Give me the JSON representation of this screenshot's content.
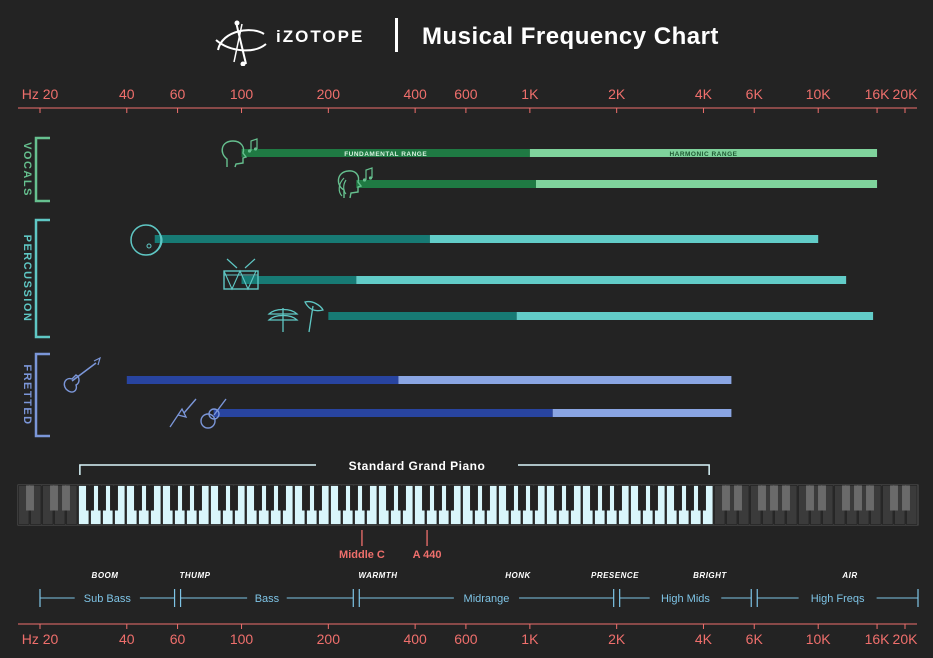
{
  "header": {
    "brand": "iZOTOPE",
    "title": "Musical Frequency Chart"
  },
  "colors": {
    "background": "#232323",
    "axis_text": "#ef6f6c",
    "vocals": "#66c08f",
    "vocals_fund": "#1f7a43",
    "vocals_harm": "#7fd39c",
    "percussion": "#5fc7c4",
    "percussion_fund": "#177a74",
    "percussion_harm": "#62ccc8",
    "fretted": "#7b96d8",
    "fretted_fund": "#2844a0",
    "fretted_harm": "#8aa5e3",
    "piano": "#d9f6fb",
    "band_labels": "#7ec4e6"
  },
  "chart_data": {
    "type": "bar",
    "subtype": "frequency-range",
    "title": "Musical Frequency Chart",
    "x_scale": "log",
    "x_unit": "Hz",
    "xlim": [
      20,
      20000
    ],
    "x_ticks": [
      {
        "value": 20,
        "label": "Hz 20"
      },
      {
        "value": 40,
        "label": "40"
      },
      {
        "value": 60,
        "label": "60"
      },
      {
        "value": 100,
        "label": "100"
      },
      {
        "value": 200,
        "label": "200"
      },
      {
        "value": 400,
        "label": "400"
      },
      {
        "value": 600,
        "label": "600"
      },
      {
        "value": 1000,
        "label": "1K"
      },
      {
        "value": 2000,
        "label": "2K"
      },
      {
        "value": 4000,
        "label": "4K"
      },
      {
        "value": 6000,
        "label": "6K"
      },
      {
        "value": 10000,
        "label": "10K"
      },
      {
        "value": 16000,
        "label": "16K"
      },
      {
        "value": 20000,
        "label": "20K"
      }
    ],
    "range_labels": {
      "fundamental": "FUNDAMENTAL RANGE",
      "harmonic": "HARMONIC RANGE"
    },
    "groups": [
      {
        "name": "VOCALS",
        "rows": [
          {
            "instrument": "male-voice-icon",
            "fundamental": [
              100,
              1000
            ],
            "harmonic": [
              1000,
              16000
            ]
          },
          {
            "instrument": "female-voice-icon",
            "fundamental": [
              250,
              1050
            ],
            "harmonic": [
              1050,
              16000
            ]
          }
        ]
      },
      {
        "name": "PERCUSSION",
        "rows": [
          {
            "instrument": "kick-drum-icon",
            "fundamental": [
              50,
              450
            ],
            "harmonic": [
              450,
              10000
            ]
          },
          {
            "instrument": "snare-drum-icon",
            "fundamental": [
              100,
              250
            ],
            "harmonic": [
              250,
              12500
            ]
          },
          {
            "instrument": "cymbals-icon",
            "fundamental": [
              200,
              900
            ],
            "harmonic": [
              900,
              15500
            ]
          }
        ]
      },
      {
        "name": "FRETTED",
        "rows": [
          {
            "instrument": "bass-guitar-icon",
            "fundamental": [
              40,
              350
            ],
            "harmonic": [
              350,
              5000
            ]
          },
          {
            "instrument": "guitar-icon",
            "fundamental": [
              80,
              1200
            ],
            "harmonic": [
              1200,
              5000
            ]
          }
        ]
      }
    ],
    "piano": {
      "label": "Standard Grand Piano",
      "range": [
        27.5,
        4186
      ],
      "markers": [
        {
          "label": "Middle C",
          "value": 261.6
        },
        {
          "label": "A 440",
          "value": 440
        }
      ]
    },
    "bands": [
      {
        "name": "Sub Bass",
        "descriptor": "BOOM",
        "range": [
          20,
          60
        ]
      },
      {
        "name": "Bass",
        "descriptor": "THUMP",
        "range": [
          60,
          250
        ]
      },
      {
        "name": "Midrange",
        "descriptor": "WARMTH",
        "range": [
          250,
          2000
        ]
      },
      {
        "name": "High Mids",
        "descriptor": "HONK",
        "range": [
          2000,
          6000
        ]
      },
      {
        "name": "High Freqs",
        "descriptor": "PRESENCE",
        "range": [
          6000,
          20000
        ]
      }
    ],
    "extra_descriptors": [
      {
        "text": "BRIGHT",
        "value": 2800
      },
      {
        "text": "AIR",
        "value": 11000
      }
    ]
  }
}
